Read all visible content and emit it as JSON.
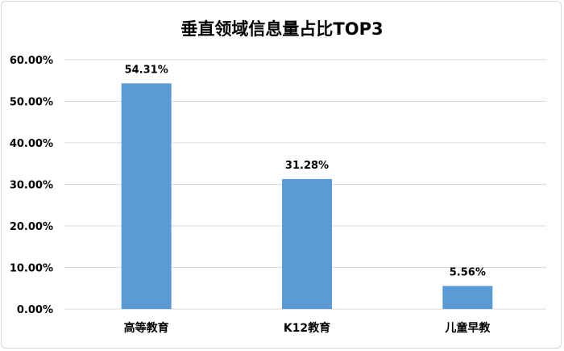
{
  "chart_data": {
    "type": "bar",
    "title": "垂直领域信息量占比TOP3",
    "xlabel": "",
    "ylabel": "",
    "categories": [
      "高等教育",
      "K12教育",
      "儿童早教"
    ],
    "values": [
      54.31,
      31.28,
      5.56
    ],
    "data_labels": [
      "54.31%",
      "31.28%",
      "5.56%"
    ],
    "ylim": [
      0,
      60
    ],
    "y_ticks": [
      0,
      10,
      20,
      30,
      40,
      50,
      60
    ],
    "y_tick_labels": [
      "0.00%",
      "10.00%",
      "20.00%",
      "30.00%",
      "40.00%",
      "50.00%",
      "60.00%"
    ],
    "bar_color": "#5b9bd5",
    "grid": true,
    "grid_color": "#d9d9d9",
    "legend": "none"
  }
}
